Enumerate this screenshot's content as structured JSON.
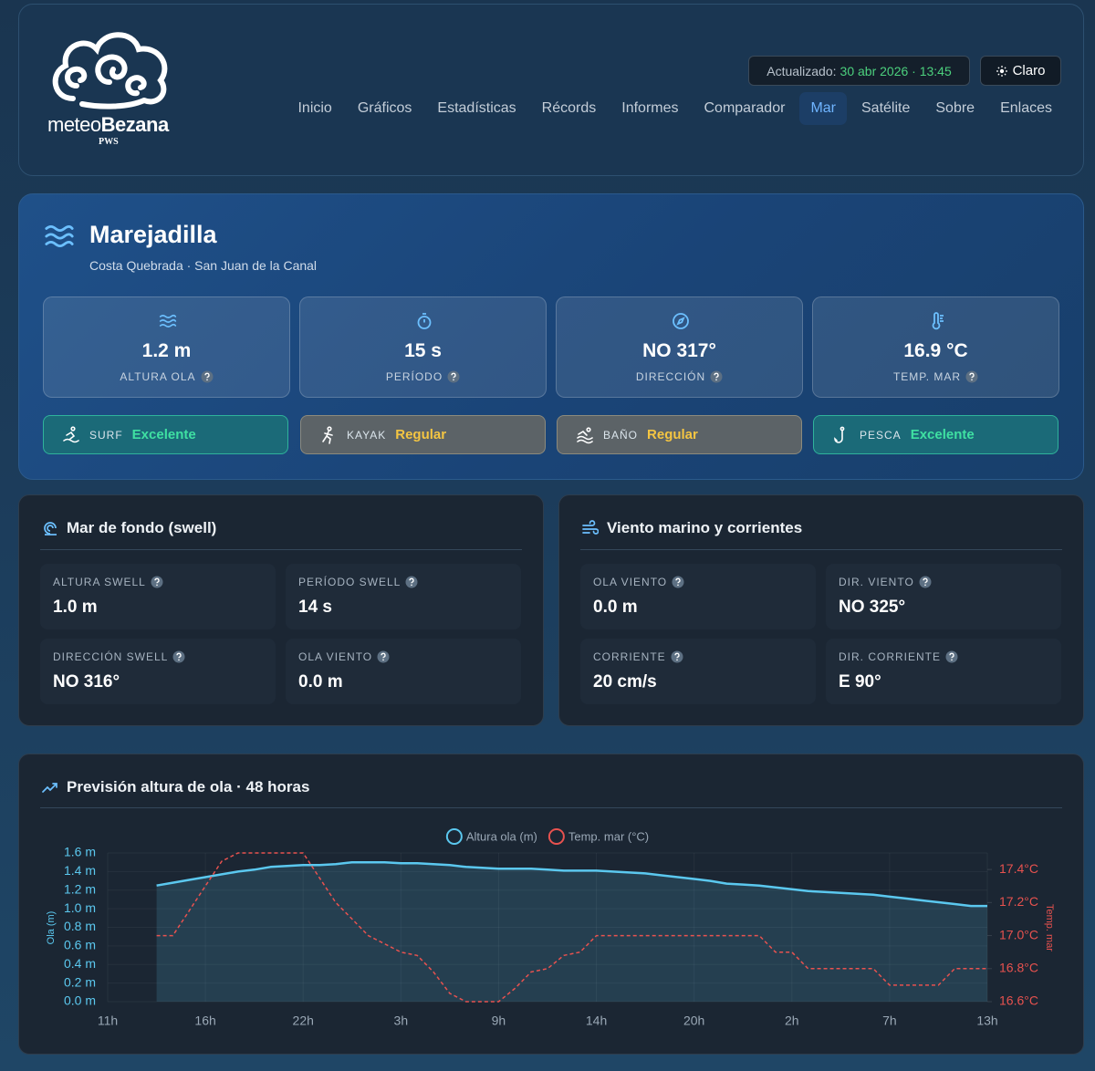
{
  "header": {
    "logo": {
      "prefix": "meteo",
      "suffix": "Bezana",
      "tag": "PWS"
    },
    "updated_label": "Actualizado:",
    "updated_value": "30 abr 2026 · 13:45",
    "theme_button": "Claro",
    "nav": [
      "Inicio",
      "Gráficos",
      "Estadísticas",
      "Récords",
      "Informes",
      "Comparador",
      "Mar",
      "Satélite",
      "Sobre",
      "Enlaces"
    ],
    "active_nav": 6
  },
  "hero": {
    "title": "Marejadilla",
    "subtitle": "Costa Quebrada · San Juan de la Canal",
    "stats": [
      {
        "value": "1.2 m",
        "label": "ALTURA OLA"
      },
      {
        "value": "15 s",
        "label": "PERÍODO"
      },
      {
        "value": "NO 317°",
        "label": "DIRECCIÓN"
      },
      {
        "value": "16.9 °C",
        "label": "TEMP. MAR"
      }
    ],
    "activities": [
      {
        "name": "SURF",
        "rating": "Excelente"
      },
      {
        "name": "KAYAK",
        "rating": "Regular"
      },
      {
        "name": "BAÑO",
        "rating": "Regular"
      },
      {
        "name": "PESCA",
        "rating": "Excelente"
      }
    ]
  },
  "swell": {
    "title": "Mar de fondo (swell)",
    "items": [
      {
        "label": "ALTURA SWELL",
        "value": "1.0 m"
      },
      {
        "label": "PERÍODO SWELL",
        "value": "14 s"
      },
      {
        "label": "DIRECCIÓN SWELL",
        "value": "NO 316°"
      },
      {
        "label": "OLA VIENTO",
        "value": "0.0 m"
      }
    ]
  },
  "wind": {
    "title": "Viento marino y corrientes",
    "items": [
      {
        "label": "OLA VIENTO",
        "value": "0.0 m"
      },
      {
        "label": "DIR. VIENTO",
        "value": "NO 325°"
      },
      {
        "label": "CORRIENTE",
        "value": "20 cm/s"
      },
      {
        "label": "DIR. CORRIENTE",
        "value": "E 90°"
      }
    ]
  },
  "forecast": {
    "title": "Previsión altura de ola · 48 horas",
    "chart_data": {
      "type": "line",
      "categories": [
        "11h",
        null,
        null,
        null,
        null,
        null,
        "16h",
        null,
        null,
        null,
        null,
        null,
        "22h",
        null,
        null,
        null,
        null,
        null,
        "3h",
        null,
        null,
        null,
        null,
        null,
        "9h",
        null,
        null,
        null,
        null,
        null,
        "14h",
        null,
        null,
        null,
        null,
        null,
        "20h",
        null,
        null,
        null,
        null,
        null,
        "2h",
        null,
        null,
        null,
        null,
        null,
        "7h",
        null,
        null,
        null,
        null,
        null,
        "13h"
      ],
      "series": [
        {
          "name": "Altura ola (m)",
          "color": "#5bc8ef",
          "fill": true,
          "values": [
            null,
            null,
            null,
            1.25,
            1.28,
            1.31,
            1.34,
            1.37,
            1.4,
            1.42,
            1.45,
            1.46,
            1.47,
            1.47,
            1.48,
            1.5,
            1.5,
            1.5,
            1.49,
            1.49,
            1.48,
            1.47,
            1.45,
            1.44,
            1.43,
            1.43,
            1.43,
            1.42,
            1.41,
            1.41,
            1.41,
            1.4,
            1.39,
            1.38,
            1.36,
            1.34,
            1.32,
            1.3,
            1.27,
            1.26,
            1.25,
            1.23,
            1.21,
            1.19,
            1.18,
            1.17,
            1.16,
            1.15,
            1.13,
            1.11,
            1.09,
            1.07,
            1.05,
            1.03,
            1.03
          ]
        },
        {
          "name": "Temp. mar (°C)",
          "color": "#e8524f",
          "axis": "y2",
          "line_style": "dashed",
          "values": [
            null,
            null,
            null,
            17.0,
            17.0,
            17.15,
            17.3,
            17.45,
            17.5,
            17.5,
            17.5,
            17.5,
            17.5,
            17.35,
            17.2,
            17.1,
            17.0,
            16.95,
            16.9,
            16.88,
            16.78,
            16.65,
            16.6,
            16.6,
            16.6,
            16.68,
            16.78,
            16.8,
            16.88,
            16.9,
            17.0,
            17.0,
            17.0,
            17.0,
            17.0,
            17.0,
            17.0,
            17.0,
            17.0,
            17.0,
            17.0,
            16.9,
            16.9,
            16.8,
            16.8,
            16.8,
            16.8,
            16.8,
            16.7,
            16.7,
            16.7,
            16.7,
            16.8,
            16.8,
            16.8
          ]
        }
      ],
      "ylabel": "Ola (m)",
      "y2label": "Temp. mar",
      "ylim": [
        0,
        1.6
      ],
      "yticks": [
        {
          "value": 0,
          "label": "0.0 m"
        },
        {
          "value": 0.2,
          "label": "0.2 m"
        },
        {
          "value": 0.4,
          "label": "0.4 m"
        },
        {
          "value": 0.6,
          "label": "0.6 m"
        },
        {
          "value": 0.8,
          "label": "0.8 m"
        },
        {
          "value": 1.0,
          "label": "1.0 m"
        },
        {
          "value": 1.2,
          "label": "1.2 m"
        },
        {
          "value": 1.4,
          "label": "1.4 m"
        },
        {
          "value": 1.6,
          "label": "1.6 m"
        }
      ],
      "y2lim": [
        16.6,
        17.5
      ],
      "y2ticks": [
        {
          "value": 16.6,
          "label": "16.6°C"
        },
        {
          "value": 16.8,
          "label": "16.8°C"
        },
        {
          "value": 17.0,
          "label": "17.0°C"
        },
        {
          "value": 17.2,
          "label": "17.2°C"
        },
        {
          "value": 17.4,
          "label": "17.4°C"
        }
      ],
      "grid": true,
      "legend": "top"
    }
  }
}
